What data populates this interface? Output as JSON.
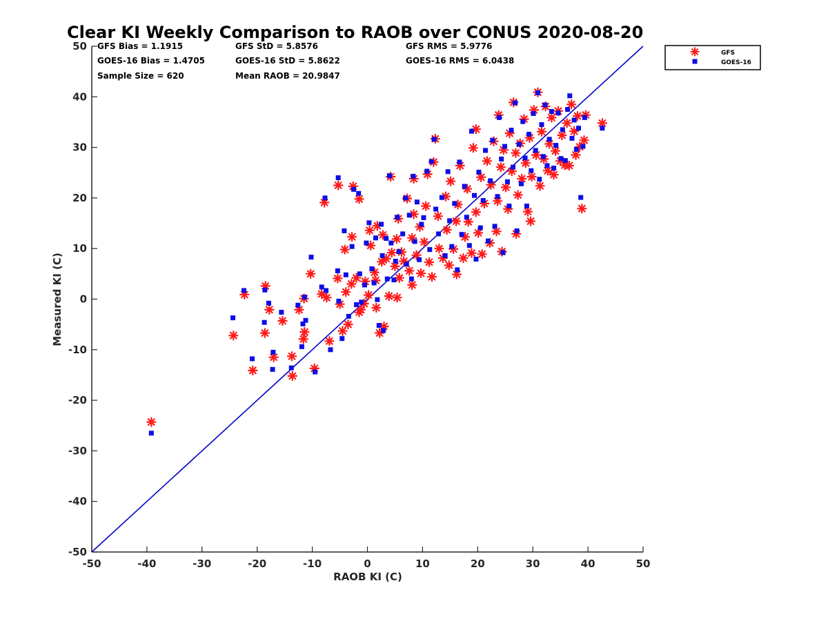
{
  "chart_data": {
    "type": "scatter",
    "title": "Clear KI Weekly Comparison to RAOB over CONUS 2020-08-20",
    "xlabel": "RAOB KI (C)",
    "ylabel": "Measured KI (C)",
    "xlim": [
      -50,
      50
    ],
    "ylim": [
      -50,
      50
    ],
    "xticks": [
      "-50",
      "-40",
      "-30",
      "-20",
      "-10",
      "0",
      "10",
      "20",
      "30",
      "40",
      "50"
    ],
    "yticks": [
      "-50",
      "-40",
      "-30",
      "-20",
      "-10",
      "0",
      "10",
      "20",
      "30",
      "40",
      "50"
    ],
    "grid": false,
    "legend_position": "top-right, outside plot",
    "reference_line": {
      "type": "1:1",
      "from": [
        -50,
        -50
      ],
      "to": [
        50,
        50
      ],
      "color": "#0000cc"
    },
    "stats": [
      [
        "GFS Bias = 1.1915",
        "GFS StD = 5.8576",
        "GFS RMS = 5.9776"
      ],
      [
        "GOES-16 Bias = 1.4705",
        "GOES-16 StD = 5.8622",
        "GOES-16 RMS = 6.0438"
      ],
      [
        "Sample Size = 620",
        "Mean RAOB = 20.9847",
        ""
      ]
    ],
    "series": [
      {
        "name": "GFS",
        "marker": "asterisk",
        "color": "#ff1a1a",
        "points": [
          [
            -39.2,
            -24.3
          ],
          [
            -24.3,
            -7.2
          ],
          [
            -22.3,
            0.9
          ],
          [
            -20.8,
            -14.1
          ],
          [
            -18.5,
            2.6
          ],
          [
            -18.6,
            -6.7
          ],
          [
            -17.8,
            -2.1
          ],
          [
            -17.0,
            -11.5
          ],
          [
            -15.4,
            -4.3
          ],
          [
            -13.7,
            -11.3
          ],
          [
            -13.6,
            -15.2
          ],
          [
            -12.4,
            -2.1
          ],
          [
            -11.6,
            -7.9
          ],
          [
            -11.4,
            -6.5
          ],
          [
            -11.5,
            0.1
          ],
          [
            -10.3,
            5.0
          ],
          [
            -9.6,
            -13.7
          ],
          [
            -8.3,
            1.0
          ],
          [
            -7.8,
            19.1
          ],
          [
            -7.4,
            0.3
          ],
          [
            -6.9,
            -8.3
          ],
          [
            -5.4,
            4.1
          ],
          [
            -5.3,
            22.5
          ],
          [
            -5.0,
            -1.0
          ],
          [
            -4.5,
            -6.3
          ],
          [
            -4.1,
            9.8
          ],
          [
            -3.9,
            1.4
          ],
          [
            -3.5,
            -5.0
          ],
          [
            -2.9,
            3.0
          ],
          [
            -2.8,
            12.3
          ],
          [
            -2.6,
            22.3
          ],
          [
            -2.0,
            4.2
          ],
          [
            -1.5,
            19.8
          ],
          [
            -1.5,
            -2.6
          ],
          [
            -1.2,
            -2.1
          ],
          [
            -0.6,
            -0.9
          ],
          [
            -0.4,
            3.5
          ],
          [
            0.2,
            0.8
          ],
          [
            0.4,
            13.6
          ],
          [
            0.6,
            10.6
          ],
          [
            1.3,
            5.3
          ],
          [
            1.5,
            3.7
          ],
          [
            1.6,
            -1.7
          ],
          [
            1.8,
            14.5
          ],
          [
            2.2,
            -6.7
          ],
          [
            2.6,
            7.4
          ],
          [
            2.8,
            12.7
          ],
          [
            3.0,
            -5.4
          ],
          [
            3.4,
            8.0
          ],
          [
            3.9,
            0.6
          ],
          [
            4.2,
            24.2
          ],
          [
            4.4,
            9.2
          ],
          [
            5.0,
            6.5
          ],
          [
            5.3,
            11.9
          ],
          [
            5.4,
            0.3
          ],
          [
            5.6,
            15.9
          ],
          [
            5.8,
            4.2
          ],
          [
            6.2,
            9.3
          ],
          [
            6.6,
            7.5
          ],
          [
            7.2,
            19.9
          ],
          [
            7.6,
            5.6
          ],
          [
            8.1,
            2.8
          ],
          [
            8.1,
            12.1
          ],
          [
            8.4,
            16.8
          ],
          [
            8.4,
            23.8
          ],
          [
            8.9,
            8.7
          ],
          [
            9.5,
            14.3
          ],
          [
            9.7,
            5.1
          ],
          [
            10.3,
            11.3
          ],
          [
            10.6,
            18.4
          ],
          [
            10.9,
            24.7
          ],
          [
            11.2,
            7.3
          ],
          [
            11.7,
            4.4
          ],
          [
            12.0,
            27.1
          ],
          [
            12.3,
            31.7
          ],
          [
            12.8,
            16.4
          ],
          [
            13.0,
            10.0
          ],
          [
            13.7,
            8.1
          ],
          [
            14.2,
            20.3
          ],
          [
            14.4,
            13.7
          ],
          [
            14.8,
            6.7
          ],
          [
            15.1,
            23.3
          ],
          [
            15.6,
            9.9
          ],
          [
            16.1,
            15.4
          ],
          [
            16.2,
            4.9
          ],
          [
            16.4,
            18.7
          ],
          [
            16.8,
            26.4
          ],
          [
            17.4,
            8.1
          ],
          [
            17.7,
            12.3
          ],
          [
            18.1,
            21.8
          ],
          [
            18.3,
            15.3
          ],
          [
            18.9,
            9.1
          ],
          [
            19.2,
            29.9
          ],
          [
            19.7,
            33.6
          ],
          [
            19.7,
            17.2
          ],
          [
            20.1,
            13.1
          ],
          [
            20.6,
            24.1
          ],
          [
            20.8,
            8.9
          ],
          [
            21.2,
            18.9
          ],
          [
            21.7,
            27.3
          ],
          [
            22.2,
            11.1
          ],
          [
            22.4,
            22.6
          ],
          [
            22.9,
            31.2
          ],
          [
            23.4,
            13.4
          ],
          [
            23.6,
            19.4
          ],
          [
            23.8,
            36.4
          ],
          [
            24.2,
            26.1
          ],
          [
            24.4,
            9.4
          ],
          [
            24.7,
            29.5
          ],
          [
            25.1,
            22.1
          ],
          [
            25.5,
            17.8
          ],
          [
            25.8,
            32.8
          ],
          [
            26.2,
            25.3
          ],
          [
            26.5,
            38.9
          ],
          [
            26.9,
            28.9
          ],
          [
            27.0,
            12.9
          ],
          [
            27.3,
            20.6
          ],
          [
            27.7,
            30.8
          ],
          [
            28.0,
            23.8
          ],
          [
            28.4,
            35.6
          ],
          [
            28.7,
            26.9
          ],
          [
            29.1,
            17.3
          ],
          [
            29.4,
            31.9
          ],
          [
            29.6,
            15.4
          ],
          [
            29.8,
            24.2
          ],
          [
            30.2,
            37.4
          ],
          [
            30.6,
            28.5
          ],
          [
            30.9,
            40.9
          ],
          [
            31.3,
            22.4
          ],
          [
            31.6,
            33.1
          ],
          [
            32.0,
            27.7
          ],
          [
            32.3,
            38.1
          ],
          [
            32.7,
            25.4
          ],
          [
            33.0,
            30.7
          ],
          [
            33.4,
            35.9
          ],
          [
            33.8,
            24.6
          ],
          [
            34.1,
            29.3
          ],
          [
            34.6,
            37.2
          ],
          [
            35.0,
            27.3
          ],
          [
            35.3,
            32.4
          ],
          [
            35.8,
            26.5
          ],
          [
            36.2,
            34.8
          ],
          [
            36.6,
            26.4
          ],
          [
            37.0,
            38.5
          ],
          [
            37.5,
            33.2
          ],
          [
            37.8,
            28.5
          ],
          [
            38.1,
            36.2
          ],
          [
            38.5,
            30.1
          ],
          [
            38.9,
            17.9
          ],
          [
            39.3,
            31.4
          ],
          [
            39.6,
            36.4
          ],
          [
            42.6,
            34.8
          ]
        ]
      },
      {
        "name": "GOES-16",
        "marker": "square",
        "color": "#0d0de6",
        "points": [
          [
            -39.2,
            -26.5
          ],
          [
            -24.4,
            -3.7
          ],
          [
            -22.4,
            1.7
          ],
          [
            -20.9,
            -11.8
          ],
          [
            -18.6,
            1.8
          ],
          [
            -18.7,
            -4.6
          ],
          [
            -17.9,
            -0.8
          ],
          [
            -17.2,
            -13.9
          ],
          [
            -17.1,
            -10.5
          ],
          [
            -15.6,
            -2.6
          ],
          [
            -13.8,
            -13.6
          ],
          [
            -12.6,
            -1.2
          ],
          [
            -11.9,
            -9.4
          ],
          [
            -11.7,
            -4.9
          ],
          [
            -11.4,
            0.4
          ],
          [
            -11.2,
            -4.2
          ],
          [
            -10.2,
            8.3
          ],
          [
            -9.5,
            -14.4
          ],
          [
            -8.3,
            2.4
          ],
          [
            -7.7,
            20.0
          ],
          [
            -7.5,
            1.7
          ],
          [
            -6.7,
            -10.0
          ],
          [
            -5.4,
            5.6
          ],
          [
            -5.3,
            24.0
          ],
          [
            -5.2,
            -0.4
          ],
          [
            -4.6,
            -7.8
          ],
          [
            -4.2,
            13.5
          ],
          [
            -3.9,
            4.8
          ],
          [
            -3.4,
            -3.4
          ],
          [
            -2.8,
            10.4
          ],
          [
            -2.5,
            21.7
          ],
          [
            -2.0,
            -1.1
          ],
          [
            -1.6,
            20.9
          ],
          [
            -1.4,
            5.0
          ],
          [
            -1.1,
            -0.6
          ],
          [
            -0.5,
            2.8
          ],
          [
            -0.2,
            11.1
          ],
          [
            0.3,
            15.1
          ],
          [
            0.8,
            6.0
          ],
          [
            1.2,
            3.2
          ],
          [
            1.5,
            12.1
          ],
          [
            1.8,
            -0.1
          ],
          [
            2.1,
            -5.2
          ],
          [
            2.5,
            14.8
          ],
          [
            2.7,
            8.6
          ],
          [
            2.9,
            -6.2
          ],
          [
            3.4,
            12.0
          ],
          [
            3.6,
            4.0
          ],
          [
            4.0,
            24.4
          ],
          [
            4.3,
            11.1
          ],
          [
            4.8,
            3.8
          ],
          [
            5.1,
            7.5
          ],
          [
            5.4,
            16.2
          ],
          [
            5.7,
            9.4
          ],
          [
            6.4,
            12.9
          ],
          [
            6.9,
            20.0
          ],
          [
            7.1,
            6.9
          ],
          [
            7.6,
            16.6
          ],
          [
            8.0,
            4.0
          ],
          [
            8.3,
            24.3
          ],
          [
            8.6,
            11.4
          ],
          [
            9.0,
            19.2
          ],
          [
            9.4,
            7.8
          ],
          [
            9.8,
            14.8
          ],
          [
            10.2,
            16.1
          ],
          [
            10.8,
            25.3
          ],
          [
            11.3,
            9.8
          ],
          [
            11.6,
            27.2
          ],
          [
            12.1,
            31.6
          ],
          [
            12.4,
            17.8
          ],
          [
            12.9,
            12.9
          ],
          [
            13.5,
            20.1
          ],
          [
            14.1,
            8.6
          ],
          [
            14.6,
            25.2
          ],
          [
            14.9,
            15.5
          ],
          [
            15.3,
            10.4
          ],
          [
            15.8,
            18.9
          ],
          [
            16.3,
            5.8
          ],
          [
            16.7,
            27.1
          ],
          [
            17.1,
            12.8
          ],
          [
            17.6,
            22.3
          ],
          [
            18.0,
            16.2
          ],
          [
            18.5,
            10.6
          ],
          [
            18.9,
            33.2
          ],
          [
            19.4,
            20.5
          ],
          [
            19.7,
            7.9
          ],
          [
            20.2,
            25.1
          ],
          [
            20.5,
            14.1
          ],
          [
            21.0,
            19.5
          ],
          [
            21.4,
            29.4
          ],
          [
            21.9,
            11.5
          ],
          [
            22.3,
            23.4
          ],
          [
            22.7,
            31.4
          ],
          [
            23.1,
            14.4
          ],
          [
            23.6,
            20.3
          ],
          [
            23.9,
            35.9
          ],
          [
            24.3,
            27.7
          ],
          [
            24.6,
            9.2
          ],
          [
            24.9,
            30.2
          ],
          [
            25.4,
            23.2
          ],
          [
            25.7,
            18.4
          ],
          [
            26.1,
            33.4
          ],
          [
            26.4,
            26.1
          ],
          [
            26.8,
            38.8
          ],
          [
            27.1,
            13.5
          ],
          [
            27.5,
            30.6
          ],
          [
            27.9,
            22.8
          ],
          [
            28.2,
            35.1
          ],
          [
            28.6,
            27.9
          ],
          [
            28.9,
            18.4
          ],
          [
            29.3,
            32.6
          ],
          [
            29.7,
            25.4
          ],
          [
            30.1,
            36.7
          ],
          [
            30.5,
            29.4
          ],
          [
            30.9,
            40.8
          ],
          [
            31.2,
            23.7
          ],
          [
            31.6,
            34.5
          ],
          [
            31.9,
            28.2
          ],
          [
            32.2,
            38.4
          ],
          [
            32.6,
            26.4
          ],
          [
            33.0,
            31.6
          ],
          [
            33.4,
            37.1
          ],
          [
            33.8,
            25.9
          ],
          [
            34.2,
            30.4
          ],
          [
            34.6,
            36.8
          ],
          [
            35.1,
            27.8
          ],
          [
            35.4,
            33.5
          ],
          [
            35.9,
            27.4
          ],
          [
            36.3,
            37.5
          ],
          [
            36.7,
            40.2
          ],
          [
            37.1,
            31.8
          ],
          [
            37.5,
            35.4
          ],
          [
            37.9,
            29.6
          ],
          [
            38.3,
            33.8
          ],
          [
            38.7,
            20.1
          ],
          [
            39.1,
            30.2
          ],
          [
            39.4,
            35.9
          ],
          [
            42.6,
            33.8
          ]
        ]
      }
    ]
  }
}
